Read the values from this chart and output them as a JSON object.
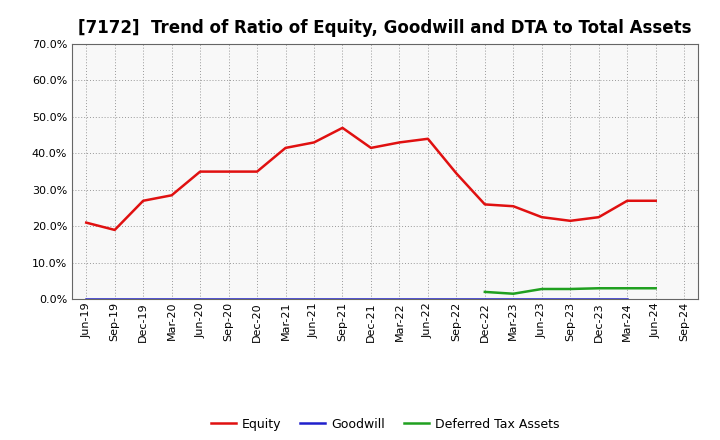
{
  "title": "[7172]  Trend of Ratio of Equity, Goodwill and DTA to Total Assets",
  "x_labels": [
    "Jun-19",
    "Sep-19",
    "Dec-19",
    "Mar-20",
    "Jun-20",
    "Sep-20",
    "Dec-20",
    "Mar-21",
    "Jun-21",
    "Sep-21",
    "Dec-21",
    "Mar-22",
    "Jun-22",
    "Sep-22",
    "Dec-22",
    "Mar-23",
    "Jun-23",
    "Sep-23",
    "Dec-23",
    "Mar-24",
    "Jun-24",
    "Sep-24"
  ],
  "equity": [
    0.21,
    0.19,
    0.27,
    0.285,
    0.35,
    0.35,
    0.35,
    0.415,
    0.43,
    0.47,
    0.415,
    0.43,
    0.44,
    0.345,
    0.26,
    0.255,
    0.225,
    0.215,
    0.225,
    0.27,
    0.27,
    null
  ],
  "goodwill": [
    0.0,
    0.0,
    0.0,
    0.0,
    0.0,
    0.0,
    0.0,
    0.0,
    0.0,
    0.0,
    0.0,
    0.0,
    0.0,
    0.0,
    0.0,
    0.0,
    0.0,
    0.0,
    0.0,
    0.0,
    null,
    null
  ],
  "dta": [
    null,
    null,
    null,
    null,
    null,
    null,
    null,
    null,
    null,
    null,
    null,
    null,
    null,
    null,
    0.02,
    0.015,
    0.028,
    0.028,
    0.03,
    0.03,
    0.03,
    null
  ],
  "equity_color": "#e01010",
  "goodwill_color": "#2020cc",
  "dta_color": "#20a020",
  "ylim": [
    0.0,
    0.7
  ],
  "yticks": [
    0.0,
    0.1,
    0.2,
    0.3,
    0.4,
    0.5,
    0.6,
    0.7
  ],
  "background_color": "#ffffff",
  "plot_bg_color": "#f8f8f8",
  "grid_color": "#999999",
  "title_fontsize": 12,
  "tick_fontsize": 8
}
